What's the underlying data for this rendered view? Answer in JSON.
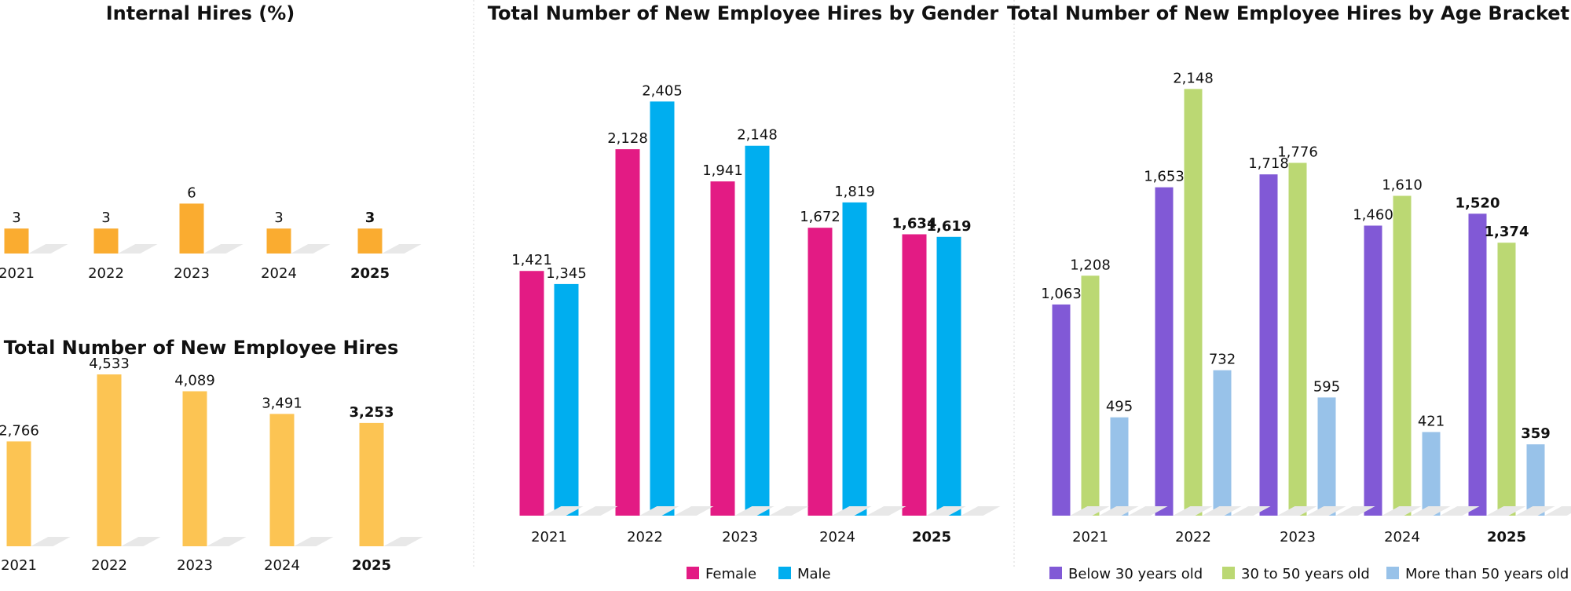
{
  "chart_data": [
    {
      "id": "internal",
      "type": "bar",
      "title": "Internal Hires (%)",
      "categories": [
        "2021",
        "2022",
        "2023",
        "2024",
        "2025"
      ],
      "highlight": "2025",
      "values": [
        3,
        3,
        6,
        3,
        3
      ],
      "value_labels": [
        "3",
        "3",
        "6",
        "3",
        "3"
      ],
      "colors": {
        "bar": "#FAAC30",
        "shadow": "#d4d4d4"
      }
    },
    {
      "id": "total",
      "type": "bar",
      "title": "Total Number of New Employee Hires",
      "categories": [
        "2021",
        "2022",
        "2023",
        "2024",
        "2025"
      ],
      "highlight": "2025",
      "values": [
        2766,
        4533,
        4089,
        3491,
        3253
      ],
      "value_labels": [
        "2,766",
        "4,533",
        "4,089",
        "3,491",
        "3,253"
      ],
      "colors": {
        "bar": "#FCC453",
        "shadow": "#d4d4d4"
      }
    },
    {
      "id": "gender",
      "type": "bar",
      "title": "Total Number of New Employee Hires by Gender",
      "categories": [
        "2021",
        "2022",
        "2023",
        "2024",
        "2025"
      ],
      "highlight": "2025",
      "series": [
        {
          "name": "Female",
          "color": "#E31B84",
          "values": [
            1421,
            2128,
            1941,
            1672,
            1634
          ],
          "value_labels": [
            "1,421",
            "2,128",
            "1,941",
            "1,672",
            "1,634"
          ]
        },
        {
          "name": "Male",
          "color": "#00AEEF",
          "values": [
            1345,
            2405,
            2148,
            1819,
            1619
          ],
          "value_labels": [
            "1,345",
            "2,405",
            "2,148",
            "1,819",
            "1,619"
          ]
        }
      ],
      "legend": "bottom"
    },
    {
      "id": "age",
      "type": "bar",
      "title": "Total Number of New Employee Hires by Age Bracket",
      "categories": [
        "2021",
        "2022",
        "2023",
        "2024",
        "2025"
      ],
      "highlight": "2025",
      "series": [
        {
          "name": "Below 30 years old",
          "color": "#8159D6",
          "values": [
            1063,
            1653,
            1718,
            1460,
            1520
          ],
          "value_labels": [
            "1,063",
            "1,653",
            "1,718",
            "1,460",
            "1,520"
          ]
        },
        {
          "name": "30 to 50 years old",
          "color": "#BBD873",
          "values": [
            1208,
            2148,
            1776,
            1610,
            1374
          ],
          "value_labels": [
            "1,208",
            "2,148",
            "1,776",
            "1,610",
            "1,374"
          ]
        },
        {
          "name": "More than 50 years old",
          "color": "#98C2E9",
          "values": [
            495,
            732,
            595,
            421,
            359
          ],
          "value_labels": [
            "495",
            "732",
            "595",
            "421",
            "359"
          ]
        }
      ],
      "legend": "bottom"
    }
  ]
}
